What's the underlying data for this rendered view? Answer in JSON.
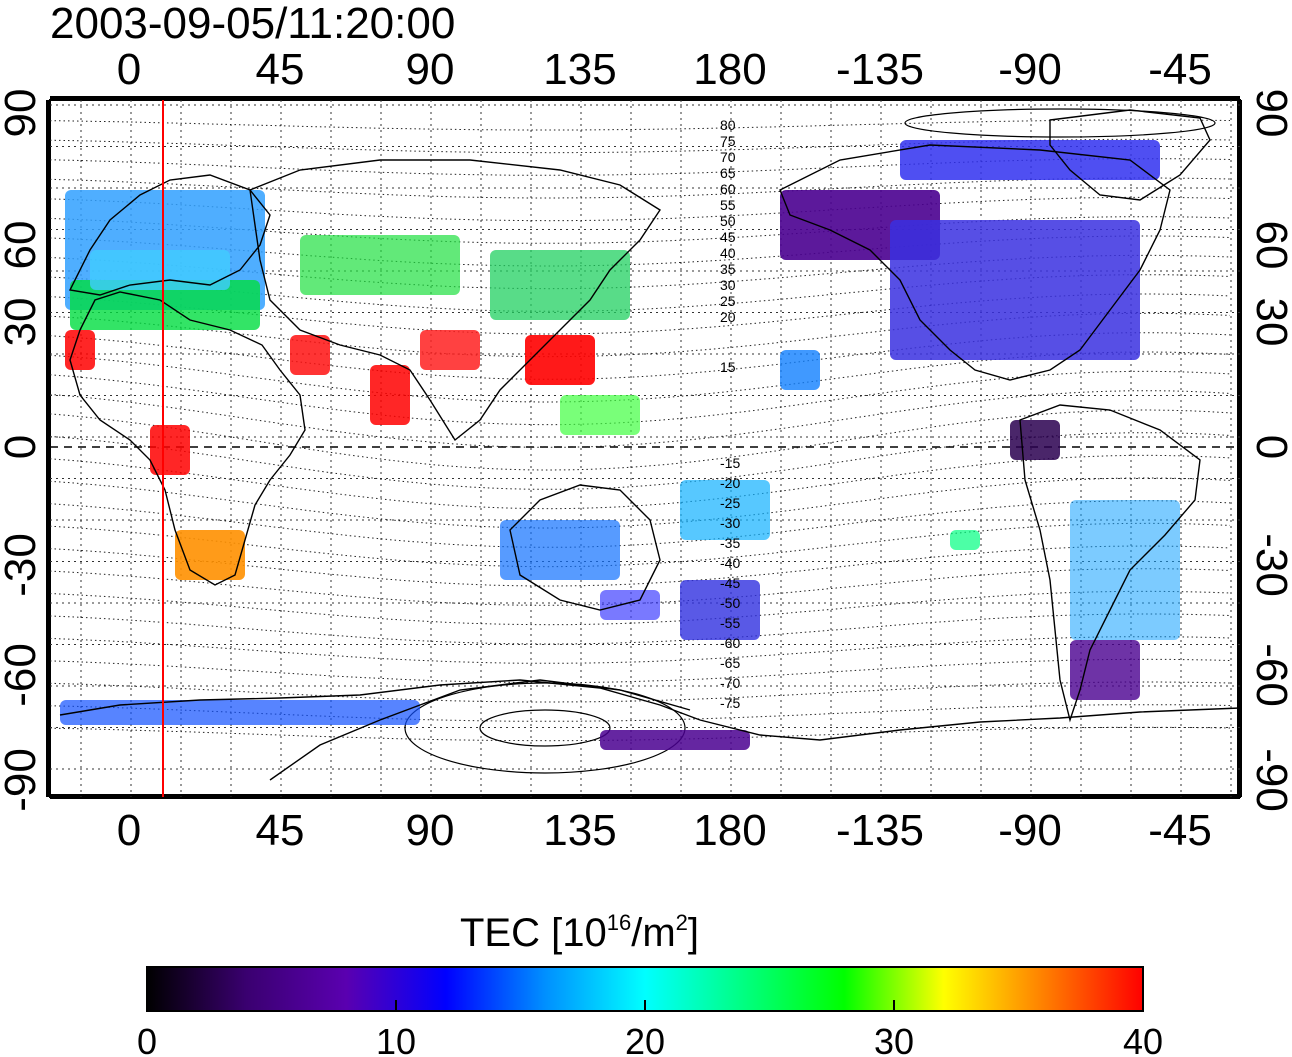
{
  "title": "2003-09-05/11:20:00",
  "map": {
    "top_lon_labels": [
      "0",
      "45",
      "90",
      "135",
      "180",
      "-135",
      "-90",
      "-45"
    ],
    "bottom_lon_labels": [
      "0",
      "45",
      "90",
      "135",
      "180",
      "-135",
      "-90",
      "-45"
    ],
    "left_lat_labels": [
      "90",
      "60",
      "30",
      "0",
      "-30",
      "-60",
      "-90"
    ],
    "right_lat_labels": [
      "90",
      "60",
      "30",
      "0",
      "-30",
      "-60",
      "-90"
    ],
    "north_contour_labels": [
      "80",
      "75",
      "70",
      "65",
      "60",
      "55",
      "50",
      "45",
      "40",
      "35",
      "30",
      "25",
      "20",
      "15"
    ],
    "south_contour_labels": [
      "-15",
      "-20",
      "-25",
      "-30",
      "-35",
      "-40",
      "-45",
      "-50",
      "-55",
      "-60",
      "-65",
      "-70",
      "-75"
    ],
    "marker_color": "#ff0000",
    "land_outline_color": "#000000"
  },
  "colorbar": {
    "label_main": "TEC  [10",
    "label_sup1": "16",
    "label_mid": "/m",
    "label_sup2": "2",
    "label_end": "]",
    "ticks": [
      "0",
      "10",
      "20",
      "30",
      "40"
    ],
    "colors": [
      "#000000",
      "#3a0070",
      "#5a00b0",
      "#0000ff",
      "#0090ff",
      "#00ffff",
      "#00ff80",
      "#00ff00",
      "#ffff00",
      "#ff8000",
      "#ff0000"
    ]
  }
}
